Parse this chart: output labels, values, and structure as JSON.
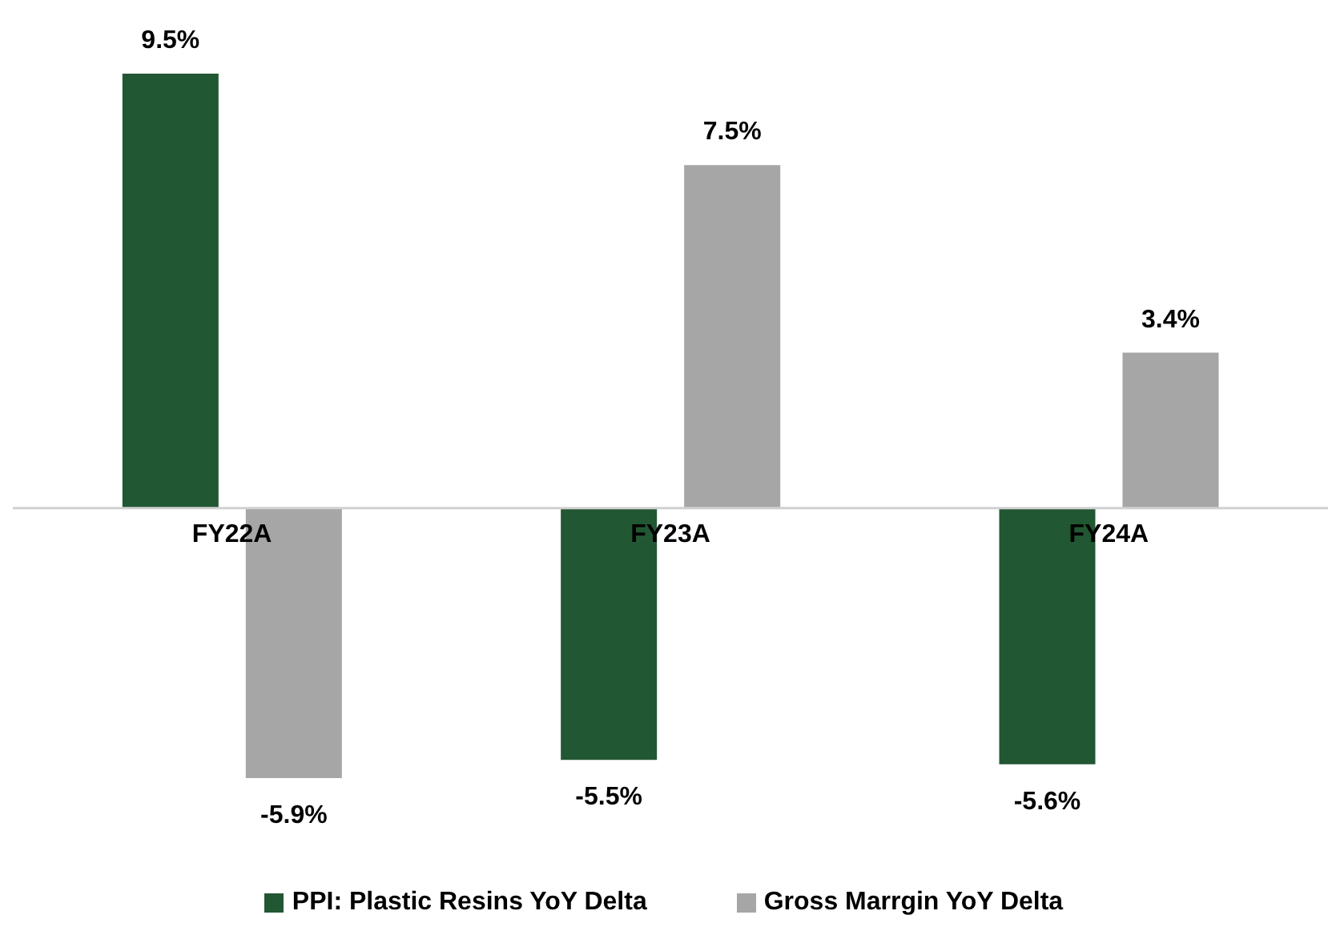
{
  "chart_data": {
    "type": "bar",
    "categories": [
      "FY22A",
      "FY23A",
      "FY24A"
    ],
    "series": [
      {
        "name": "PPI: Plastic Resins YoY Delta",
        "color": "#215732",
        "values": [
          9.5,
          -5.5,
          -5.6
        ],
        "value_labels": [
          "9.5%",
          "-5.5%",
          "-5.6%"
        ]
      },
      {
        "name": "Gross Marrgin YoY Delta",
        "color": "#a6a6a6",
        "values": [
          -5.9,
          7.5,
          3.4
        ],
        "value_labels": [
          "-5.9%",
          "7.5%",
          "3.4%"
        ]
      }
    ],
    "legend": "bottom",
    "grid": false
  }
}
